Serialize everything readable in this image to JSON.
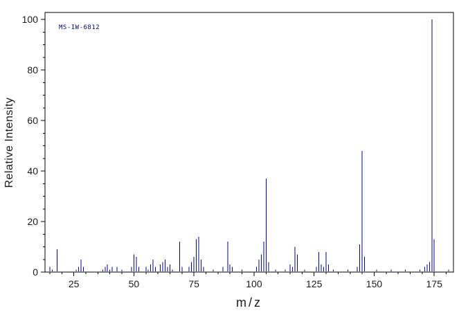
{
  "chart_data": {
    "type": "bar",
    "subtype": "mass-spectrum-stick-plot",
    "title": "",
    "annotation": "MS-IW-6812",
    "xlabel": "m/z",
    "ylabel": "Relative Intensity",
    "xlim": [
      13,
      183
    ],
    "ylim": [
      0,
      100
    ],
    "x_major_ticks": [
      25,
      50,
      75,
      100,
      125,
      150,
      175
    ],
    "x_minor_step": 5,
    "y_major_ticks": [
      0,
      20,
      40,
      60,
      80,
      100
    ],
    "y_minor_step": 5,
    "grid": false,
    "legend": false,
    "colors": {
      "peak": "#00008b",
      "axis": "#000000",
      "tick_text": "#1a1a1a",
      "annotation": "#000080",
      "background": "#ffffff"
    },
    "peaks": [
      [
        15,
        2
      ],
      [
        16,
        1
      ],
      [
        18,
        9
      ],
      [
        26,
        1
      ],
      [
        27,
        2
      ],
      [
        28,
        5
      ],
      [
        29,
        2
      ],
      [
        37,
        1
      ],
      [
        38,
        2
      ],
      [
        39,
        3
      ],
      [
        40,
        1
      ],
      [
        41,
        2
      ],
      [
        43,
        2
      ],
      [
        45,
        1
      ],
      [
        49,
        2
      ],
      [
        50,
        7
      ],
      [
        51,
        6
      ],
      [
        52,
        2
      ],
      [
        55,
        2
      ],
      [
        56,
        1
      ],
      [
        57,
        3
      ],
      [
        58,
        5
      ],
      [
        59,
        2
      ],
      [
        61,
        3
      ],
      [
        62,
        4
      ],
      [
        63,
        5
      ],
      [
        64,
        2
      ],
      [
        65,
        3
      ],
      [
        66,
        1
      ],
      [
        69,
        12
      ],
      [
        70,
        2
      ],
      [
        73,
        2
      ],
      [
        74,
        4
      ],
      [
        75,
        6
      ],
      [
        76,
        13
      ],
      [
        77,
        14
      ],
      [
        78,
        5
      ],
      [
        79,
        2
      ],
      [
        83,
        1
      ],
      [
        87,
        2
      ],
      [
        89,
        12
      ],
      [
        90,
        3
      ],
      [
        91,
        2
      ],
      [
        95,
        1
      ],
      [
        101,
        2
      ],
      [
        102,
        5
      ],
      [
        103,
        7
      ],
      [
        104,
        12
      ],
      [
        105,
        37
      ],
      [
        106,
        4
      ],
      [
        109,
        1
      ],
      [
        113,
        1
      ],
      [
        115,
        3
      ],
      [
        116,
        2
      ],
      [
        117,
        10
      ],
      [
        118,
        7
      ],
      [
        121,
        1
      ],
      [
        126,
        2
      ],
      [
        127,
        8
      ],
      [
        128,
        3
      ],
      [
        129,
        2
      ],
      [
        130,
        8
      ],
      [
        131,
        3
      ],
      [
        133,
        1
      ],
      [
        139,
        1
      ],
      [
        143,
        2
      ],
      [
        144,
        11
      ],
      [
        145,
        48
      ],
      [
        146,
        6
      ],
      [
        151,
        1
      ],
      [
        157,
        1
      ],
      [
        163,
        1
      ],
      [
        169,
        1
      ],
      [
        171,
        2
      ],
      [
        172,
        3
      ],
      [
        173,
        4
      ],
      [
        174,
        100
      ],
      [
        175,
        13
      ],
      [
        181,
        1
      ]
    ]
  }
}
